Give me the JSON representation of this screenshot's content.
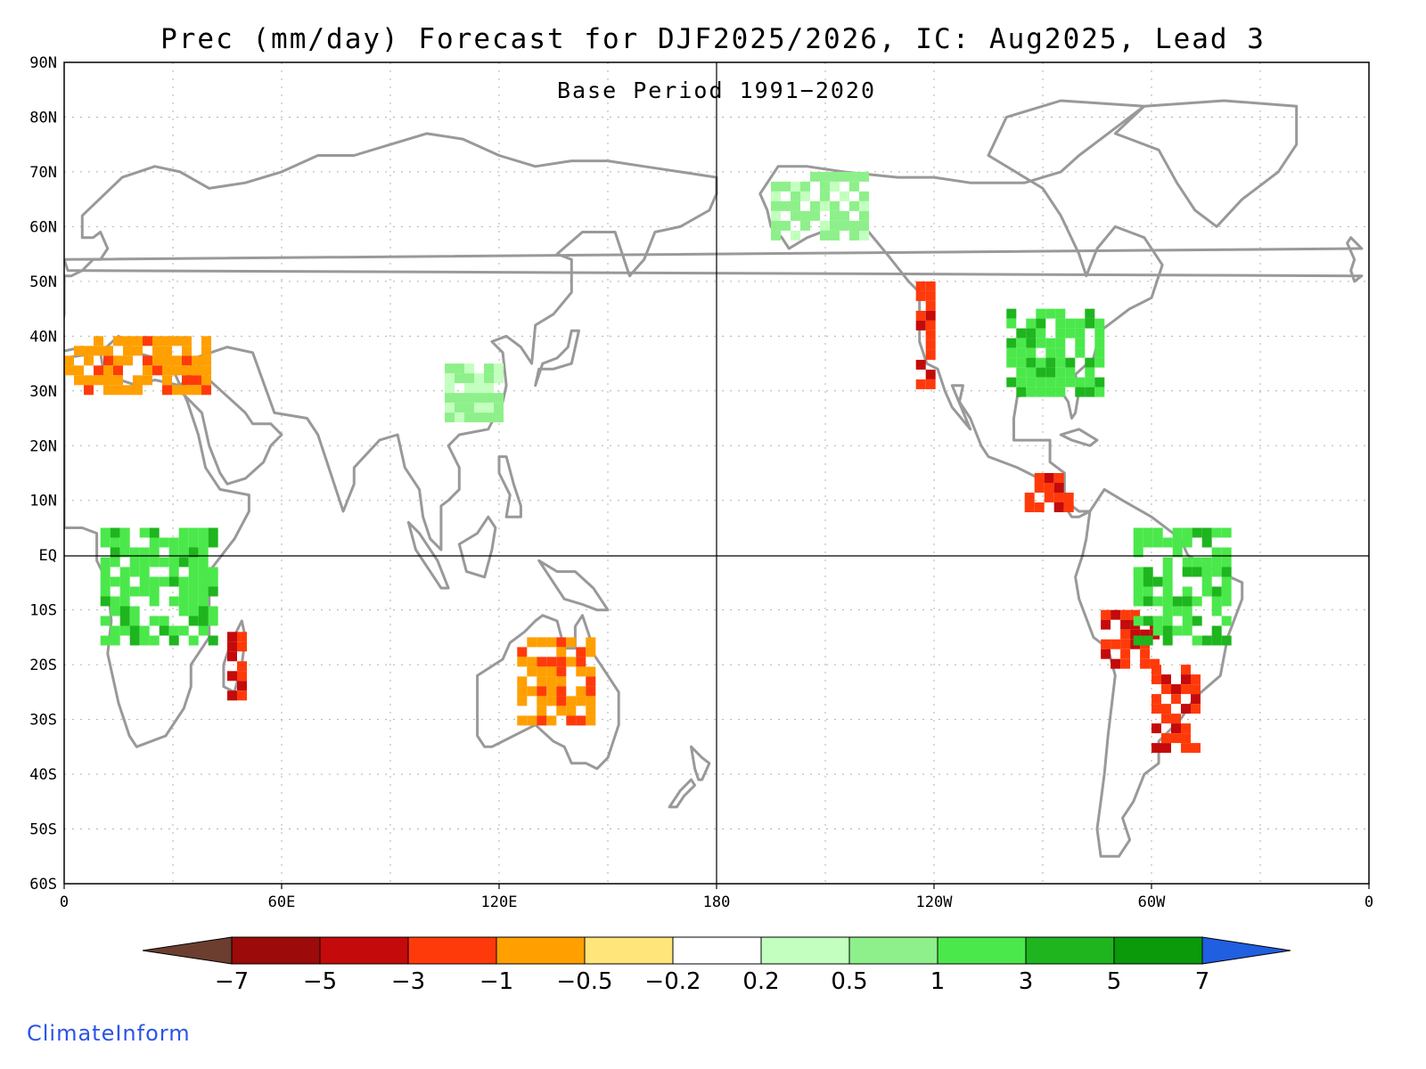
{
  "title": "Prec (mm/day) Forecast for DJF2025/2026, IC: Aug2025, Lead 3",
  "subtitle": "Base Period 1991−2020",
  "footer": "ClimateInform",
  "axes": {
    "lat_labels": [
      "90N",
      "80N",
      "70N",
      "60N",
      "50N",
      "40N",
      "30N",
      "20N",
      "10N",
      "EQ",
      "10S",
      "20S",
      "30S",
      "40S",
      "50S",
      "60S"
    ],
    "lat_values": [
      90,
      80,
      70,
      60,
      50,
      40,
      30,
      20,
      10,
      0,
      -10,
      -20,
      -30,
      -40,
      -50,
      -60
    ],
    "lon_labels": [
      "0",
      "60E",
      "120E",
      "180",
      "120W",
      "60W",
      "0"
    ],
    "lon_values": [
      0,
      60,
      120,
      180,
      240,
      300,
      360
    ],
    "lat_range": [
      -60,
      90
    ],
    "lon_range": [
      0,
      360
    ]
  },
  "colorbar": {
    "ticks": [
      "−7",
      "−5",
      "−3",
      "−1",
      "−0.5",
      "−0.2",
      "0.2",
      "0.5",
      "1",
      "3",
      "5",
      "7"
    ],
    "colors": [
      "#6b3e30",
      "#9c0a0a",
      "#c40a0a",
      "#ff3a0a",
      "#ff9f00",
      "#ffe57a",
      "#ffffff",
      "#c3ffbf",
      "#8ef08a",
      "#4be84b",
      "#1eb51e",
      "#0a9a0a",
      "#1f5fe0"
    ]
  },
  "chart_data": {
    "type": "map",
    "variable": "Precipitation anomaly (mm/day)",
    "season": "DJF2025/2026",
    "anomaly_regions": [
      {
        "name": "Australia",
        "category": "-1 to -3",
        "lon": [
          125,
          145
        ],
        "lat": [
          -30,
          -15
        ]
      },
      {
        "name": "Madagascar",
        "category": "-3 to -5",
        "lon": [
          45,
          50
        ],
        "lat": [
          -25,
          -14
        ]
      },
      {
        "name": "Southern Brazil / Uruguay",
        "category": "-3 to -5",
        "lon": [
          300,
          312
        ],
        "lat": [
          -35,
          -20
        ]
      },
      {
        "name": "Peru / Bolivia Andes",
        "category": "-3 to -5",
        "lon": [
          286,
          300
        ],
        "lat": [
          -20,
          -10
        ]
      },
      {
        "name": "US West Coast",
        "category": "-3 to -5",
        "lon": [
          235,
          240
        ],
        "lat": [
          32,
          50
        ]
      },
      {
        "name": "Central America",
        "category": "-3 to -5",
        "lon": [
          265,
          278
        ],
        "lat": [
          8,
          15
        ]
      },
      {
        "name": "Mediterranean / Morocco",
        "category": "-1 to -3",
        "lon": [
          0,
          40
        ],
        "lat": [
          30,
          40
        ]
      },
      {
        "name": "Eastern US",
        "category": "0.5 to 3",
        "lon": [
          260,
          285
        ],
        "lat": [
          30,
          45
        ]
      },
      {
        "name": "Central Africa",
        "category": "0.5 to 3",
        "lon": [
          10,
          40
        ],
        "lat": [
          -15,
          5
        ]
      },
      {
        "name": "Amazon",
        "category": "0.5 to 3",
        "lon": [
          295,
          320
        ],
        "lat": [
          -15,
          5
        ]
      },
      {
        "name": "Eastern China",
        "category": "0.5 to 1",
        "lon": [
          105,
          120
        ],
        "lat": [
          25,
          35
        ]
      },
      {
        "name": "Alaska",
        "category": "0.5 to 1",
        "lon": [
          195,
          220
        ],
        "lat": [
          58,
          70
        ]
      }
    ]
  }
}
